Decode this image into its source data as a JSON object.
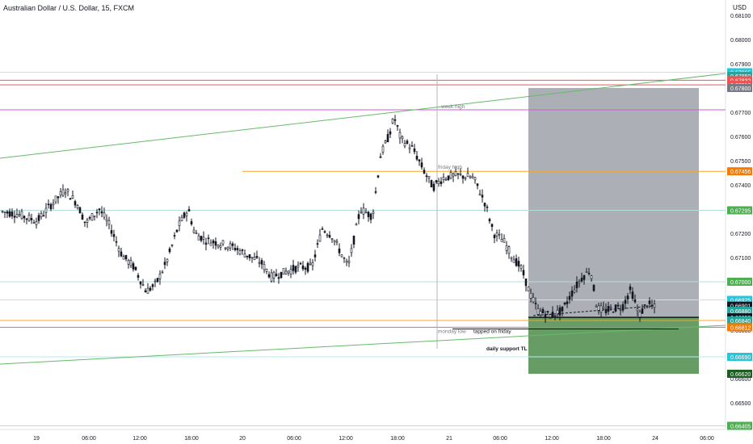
{
  "header": {
    "symbol_title": "Australian Dollar / U.S. Dollar, 15, FXCM",
    "currency": "USD"
  },
  "chart_data": {
    "type": "candlestick",
    "y_axis": {
      "tick_labels": [
        "0.68100",
        "0.68000",
        "0.67900",
        "0.67800",
        "0.67700",
        "0.67600",
        "0.67500",
        "0.67400",
        "0.67300",
        "0.67200",
        "0.67100",
        "0.67000",
        "0.66900",
        "0.66800",
        "0.66700",
        "0.66600",
        "0.66500",
        "0.66400"
      ],
      "range": [
        0.6637,
        0.6816
      ]
    },
    "x_axis": {
      "tick_labels": [
        "19",
        "06:00",
        "12:00",
        "18:00",
        "20",
        "06:00",
        "12:00",
        "18:00",
        "21",
        "06:00",
        "12:00",
        "18:00",
        "24",
        "06:00"
      ]
    },
    "price_labels": [
      {
        "text": "0.67865",
        "color": "#26c6da"
      },
      {
        "text": "0.67850",
        "color": "#26a69a"
      },
      {
        "text": "0.67832",
        "color": "#ef5350"
      },
      {
        "text": "0.67813",
        "color": "#ef5350"
      },
      {
        "text": "0.67800",
        "color": "#787b86"
      },
      {
        "text": "0.67456",
        "color": "#f57c00"
      },
      {
        "text": "0.67295",
        "color": "#4caf50"
      },
      {
        "text": "0.67000",
        "color": "#4caf50"
      },
      {
        "text": "0.66925",
        "color": "#26c6da"
      },
      {
        "text": "0.66901",
        "color": "#131722"
      },
      {
        "text": "0.66880",
        "color": "#26a69a"
      },
      {
        "text": "0.66853",
        "color": "#131722"
      },
      {
        "text": "0.66840",
        "color": "#26a69a"
      },
      {
        "text": "0.66812",
        "color": "#f57c00"
      },
      {
        "text": "0.66690",
        "color": "#26c6da"
      },
      {
        "text": "0.66620",
        "color": "#1b5e20"
      },
      {
        "text": "0.66405",
        "color": "#4caf50"
      }
    ],
    "horizontal_levels": [
      {
        "price": 0.67832,
        "color": "#ef5350"
      },
      {
        "price": 0.67813,
        "color": "#ef5350"
      },
      {
        "price": 0.67865,
        "color": "#b2ebf2"
      },
      {
        "price": 0.6771,
        "color": "#ce5bd8"
      },
      {
        "price": 0.67456,
        "color": "#f5a623"
      },
      {
        "price": 0.67295,
        "color": "#b2dfdb"
      },
      {
        "price": 0.67,
        "color": "#b2dfdb"
      },
      {
        "price": 0.66925,
        "color": "#b2ebf2"
      },
      {
        "price": 0.6684,
        "color": "#f5a623"
      },
      {
        "price": 0.66812,
        "color": "#ce5bd8"
      },
      {
        "price": 0.6669,
        "color": "#b2ebf2"
      },
      {
        "price": 0.66405,
        "color": "#b2dfdb"
      }
    ],
    "annotations": [
      {
        "text": "week high"
      },
      {
        "text": "friday high"
      },
      {
        "text": "monday low"
      },
      {
        "text": "tapped on friday"
      },
      {
        "text": "daily support TL"
      }
    ],
    "trendlines": [
      {
        "name": "upper-trendline",
        "color": "#66bb6a",
        "from_price": 0.6751,
        "to_price": 0.6786
      },
      {
        "name": "lower-trendline",
        "color": "#66bb6a",
        "from_price": 0.6666,
        "to_price": 0.6682
      }
    ],
    "position": {
      "entry": 0.66853,
      "target": 0.678,
      "stop": 0.6662
    },
    "colors": {
      "up": "#26a69a",
      "down": "#ef5350",
      "candle": "#131722",
      "profit_zone": "#9598a1",
      "loss_zone": "#4c8c4a"
    }
  }
}
